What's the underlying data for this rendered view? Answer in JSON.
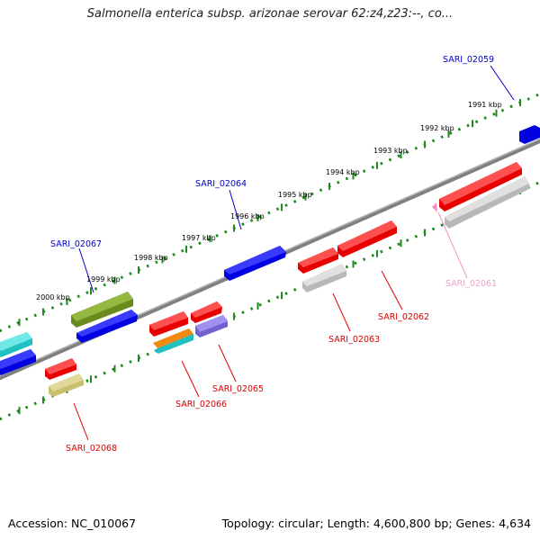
{
  "title": "Salmonella enterica subsp. arizonae serovar 62:z4,z23:--, co...",
  "footer": {
    "accession": "Accession: NC_010067",
    "stats": "Topology: circular; Length: 4,600,800 bp; Genes: 4,634"
  },
  "scale_labels": [
    "1991 kbp",
    "1992 kbp",
    "1993 kbp",
    "1994 kbp",
    "1995 kbp",
    "1996 kbp",
    "1997 kbp",
    "1998 kbp",
    "1999 kbp",
    "2000 kbp"
  ],
  "gene_labels": [
    {
      "name": "SARI_02059",
      "color": "#0000cc"
    },
    {
      "name": "SARI_02064",
      "color": "#0000cc"
    },
    {
      "name": "SARI_02067",
      "color": "#0000cc"
    },
    {
      "name": "SARI_02061",
      "color": "#f0a0c8"
    },
    {
      "name": "SARI_02062",
      "color": "#dd0000"
    },
    {
      "name": "SARI_02063",
      "color": "#dd0000"
    },
    {
      "name": "SARI_02065",
      "color": "#dd0000"
    },
    {
      "name": "SARI_02066",
      "color": "#dd0000"
    },
    {
      "name": "SARI_02068",
      "color": "#dd0000"
    }
  ],
  "colors": {
    "backbone": "#8a8a8a",
    "tick": "#1f8a1f",
    "red": "#e60000",
    "blue": "#0000e0",
    "gray": "#bdbdbd",
    "olive": "#6b8a1e",
    "cyan": "#20c0c0",
    "purple": "#7060d0",
    "khaki": "#c8c070",
    "orange": "#f08a10",
    "pink": "#f090c0"
  }
}
